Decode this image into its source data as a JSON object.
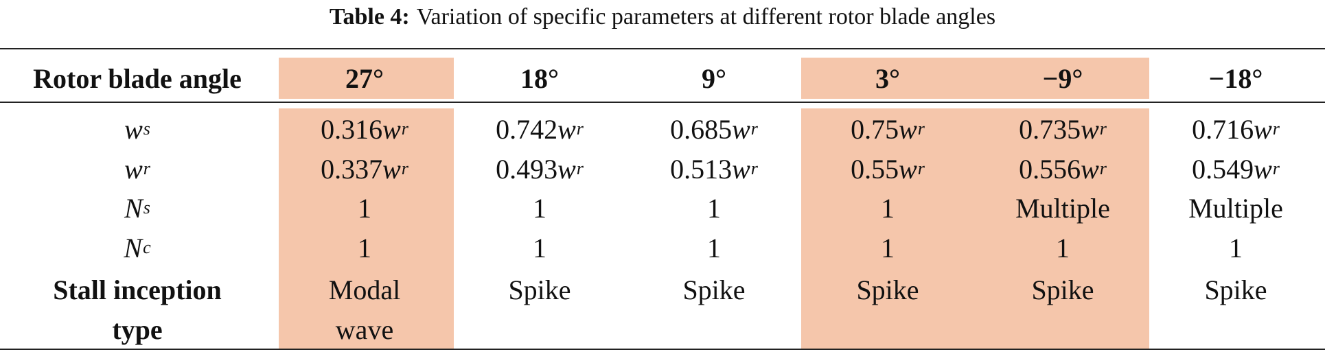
{
  "caption": {
    "label": "Table 4:",
    "text": "Variation of specific parameters at different rotor blade angles"
  },
  "table": {
    "corner_header": "Rotor blade angle",
    "angles": [
      "27°",
      "18°",
      "9°",
      "3°",
      "−9°",
      "−18°"
    ],
    "highlighted_columns": [
      0,
      3,
      4
    ],
    "highlight_color": "#f5c6ab",
    "rows": [
      {
        "symbol": "w",
        "sub": "s",
        "values": [
          {
            "num": "0.316",
            "var": "w",
            "sub": "r"
          },
          {
            "num": "0.742",
            "var": "w",
            "sub": "r"
          },
          {
            "num": "0.685",
            "var": "w",
            "sub": "r"
          },
          {
            "num": "0.75",
            "var": "w",
            "sub": "r"
          },
          {
            "num": "0.735",
            "var": "w",
            "sub": "r"
          },
          {
            "num": "0.716",
            "var": "w",
            "sub": "r"
          }
        ]
      },
      {
        "symbol": "w",
        "sub": "r",
        "values": [
          {
            "num": "0.337",
            "var": "w",
            "sub": "r"
          },
          {
            "num": "0.493",
            "var": "w",
            "sub": "r"
          },
          {
            "num": "0.513",
            "var": "w",
            "sub": "r"
          },
          {
            "num": "0.55",
            "var": "w",
            "sub": "r"
          },
          {
            "num": "0.556",
            "var": "w",
            "sub": "r"
          },
          {
            "num": "0.549",
            "var": "w",
            "sub": "r"
          }
        ]
      },
      {
        "symbol": "N",
        "sub": "s",
        "values": [
          "1",
          "1",
          "1",
          "1",
          "Multiple",
          "Multiple"
        ]
      },
      {
        "symbol": "N",
        "sub": "c",
        "values": [
          "1",
          "1",
          "1",
          "1",
          "1",
          "1"
        ]
      }
    ],
    "stall_row": {
      "label_line1": "Stall inception",
      "label_line2": "type",
      "values": [
        [
          "Modal",
          "wave"
        ],
        [
          "Spike"
        ],
        [
          "Spike"
        ],
        [
          "Spike"
        ],
        [
          "Spike"
        ],
        [
          "Spike"
        ]
      ]
    }
  }
}
